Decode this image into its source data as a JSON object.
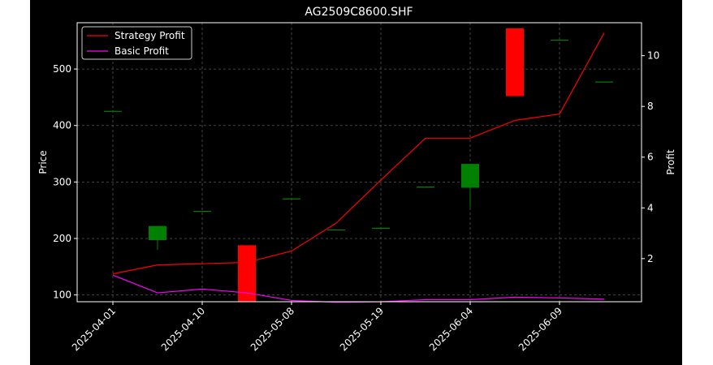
{
  "chart_data": {
    "type": "candlestick",
    "title": "AG2509C8600.SHF",
    "ylabel_left": "Price",
    "ylabel_right": "Profit",
    "xlabel": "",
    "ylim_left": [
      88,
      582
    ],
    "ylim_right": [
      0.3,
      11.3
    ],
    "yticks_left": [
      100,
      200,
      300,
      400,
      500
    ],
    "yticks_right": [
      2,
      4,
      6,
      8,
      10
    ],
    "x_tick_labels": [
      "2025-04-01",
      "2025-04-10",
      "2025-05-08",
      "2025-05-19",
      "2025-06-04",
      "2025-06-09"
    ],
    "x_tick_positions": [
      0,
      2,
      4,
      6,
      8,
      10
    ],
    "grid": true,
    "legend_position": "top-left",
    "colors": {
      "background": "#000000",
      "up": "#008000",
      "down": "#ff0000",
      "strategy_line": "#ff0000",
      "basic_line": "#ff00ff",
      "grid": "#555555"
    },
    "candles": [
      {
        "open": 425,
        "close": 425,
        "high": 425,
        "low": 425
      },
      {
        "open": 197,
        "close": 222,
        "high": 222,
        "low": 180
      },
      {
        "open": 248,
        "close": 248,
        "high": 248,
        "low": 248
      },
      {
        "open": 188,
        "close": 88,
        "high": 188,
        "low": 88
      },
      {
        "open": 270,
        "close": 270,
        "high": 270,
        "low": 270
      },
      {
        "open": 215,
        "close": 215,
        "high": 215,
        "low": 215
      },
      {
        "open": 218,
        "close": 218,
        "high": 218,
        "low": 218
      },
      {
        "open": 291,
        "close": 291,
        "high": 291,
        "low": 291
      },
      {
        "open": 290,
        "close": 332,
        "high": 332,
        "low": 255
      },
      {
        "open": 572,
        "close": 452,
        "high": 572,
        "low": 452
      },
      {
        "open": 551,
        "close": 551,
        "high": 551,
        "low": 551
      },
      {
        "open": 477,
        "close": 477,
        "high": 477,
        "low": 477
      }
    ],
    "series": [
      {
        "name": "Strategy Profit",
        "axis": "right",
        "values": [
          1.4,
          1.75,
          1.8,
          1.85,
          2.3,
          3.4,
          5.1,
          6.75,
          6.75,
          7.45,
          7.7,
          10.9
        ]
      },
      {
        "name": "Basic Profit",
        "axis": "right",
        "values": [
          1.35,
          0.65,
          0.8,
          0.65,
          0.35,
          0.28,
          0.3,
          0.38,
          0.38,
          0.48,
          0.45,
          0.4
        ]
      }
    ]
  }
}
